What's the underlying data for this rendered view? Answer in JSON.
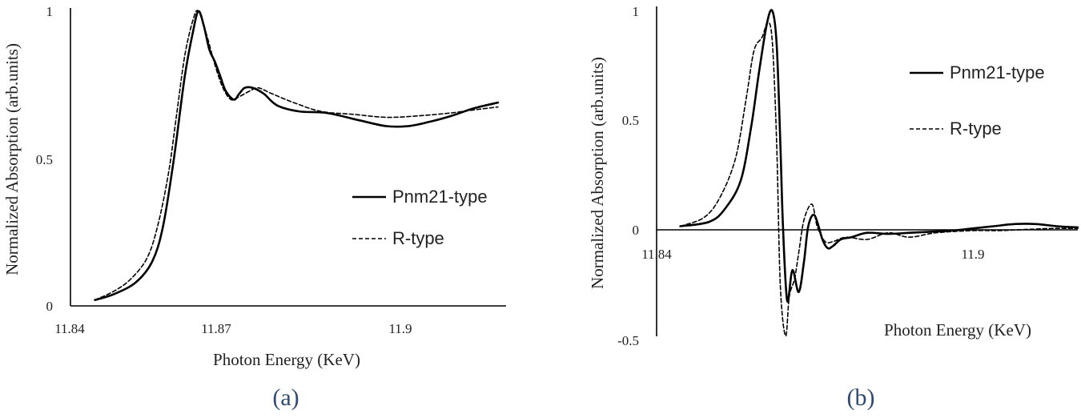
{
  "chart_data": [
    {
      "type": "line",
      "panel_label": "(a)",
      "xlabel": "Photon Energy (KeV)",
      "ylabel": "Normalized Absorption (arb.units)",
      "xlim": [
        11.84,
        11.92
      ],
      "ylim": [
        0,
        1
      ],
      "x_ticks": [
        "11.84",
        "11.87",
        "11.9"
      ],
      "y_ticks": [
        "0",
        "0.5",
        "1"
      ],
      "legend": "right",
      "grid": false,
      "series": [
        {
          "name": "Pnm21-type",
          "style": "solid",
          "x": [
            11.8445,
            11.848,
            11.852,
            11.855,
            11.857,
            11.859,
            11.861,
            11.8625,
            11.8635,
            11.8645,
            11.8655,
            11.8665,
            11.8675,
            11.8685,
            11.87,
            11.871,
            11.872,
            11.8735,
            11.8755,
            11.878,
            11.882,
            11.887,
            11.893,
            11.898,
            11.902,
            11.906,
            11.91,
            11.914,
            11.9185
          ],
          "y": [
            0.02,
            0.04,
            0.08,
            0.15,
            0.27,
            0.5,
            0.78,
            0.93,
            1.0,
            0.95,
            0.87,
            0.83,
            0.78,
            0.73,
            0.7,
            0.72,
            0.74,
            0.74,
            0.72,
            0.68,
            0.66,
            0.655,
            0.63,
            0.61,
            0.61,
            0.625,
            0.645,
            0.67,
            0.69
          ]
        },
        {
          "name": "R-type",
          "style": "dashed",
          "x": [
            11.8445,
            11.848,
            11.851,
            11.854,
            11.856,
            11.858,
            11.8595,
            11.861,
            11.8625,
            11.8635,
            11.865,
            11.8665,
            11.868,
            11.8695,
            11.871,
            11.873,
            11.8745,
            11.877,
            11.881,
            11.886,
            11.892,
            11.898,
            11.904,
            11.91,
            11.914,
            11.9185
          ],
          "y": [
            0.02,
            0.05,
            0.09,
            0.16,
            0.27,
            0.45,
            0.65,
            0.85,
            0.97,
            1.0,
            0.92,
            0.82,
            0.74,
            0.7,
            0.71,
            0.73,
            0.74,
            0.72,
            0.69,
            0.66,
            0.65,
            0.64,
            0.645,
            0.655,
            0.665,
            0.675
          ]
        }
      ]
    },
    {
      "type": "line",
      "panel_label": "(b)",
      "xlabel": "Photon Energy (KeV)",
      "ylabel": "Normalized Absorption (arb.units)",
      "xlim": [
        11.84,
        11.92
      ],
      "ylim": [
        -0.5,
        1
      ],
      "x_ticks": [
        "11.84",
        "11.9"
      ],
      "y_ticks": [
        "-0.5",
        "0",
        "0.5",
        "1"
      ],
      "legend": "top-right",
      "grid": false,
      "series": [
        {
          "name": "Pnm21-type",
          "style": "solid",
          "x": [
            11.8445,
            11.85,
            11.853,
            11.856,
            11.858,
            11.8595,
            11.861,
            11.862,
            11.8628,
            11.8635,
            11.864,
            11.8648,
            11.8658,
            11.867,
            11.868,
            11.8688,
            11.87,
            11.8715,
            11.8725,
            11.8735,
            11.875,
            11.877,
            11.88,
            11.884,
            11.888,
            11.892,
            11.896,
            11.9,
            11.904,
            11.908,
            11.912,
            11.916,
            11.92
          ],
          "y": [
            0.02,
            0.04,
            0.1,
            0.23,
            0.48,
            0.73,
            0.95,
            1.0,
            0.85,
            0.4,
            0.02,
            -0.32,
            -0.18,
            -0.28,
            -0.14,
            0.02,
            0.07,
            -0.04,
            -0.08,
            -0.07,
            -0.04,
            -0.03,
            -0.01,
            -0.015,
            -0.01,
            -0.005,
            0.0,
            0.01,
            0.02,
            0.03,
            0.03,
            0.02,
            0.015
          ]
        },
        {
          "name": "R-type",
          "style": "dashed",
          "x": [
            11.8445,
            11.849,
            11.852,
            11.855,
            11.857,
            11.8585,
            11.86,
            11.8612,
            11.862,
            11.8628,
            11.8635,
            11.8645,
            11.8652,
            11.8662,
            11.867,
            11.868,
            11.8695,
            11.8705,
            11.872,
            11.8735,
            11.876,
            11.88,
            11.884,
            11.888,
            11.893,
            11.9,
            11.905,
            11.91,
            11.915,
            11.92
          ],
          "y": [
            0.02,
            0.06,
            0.15,
            0.33,
            0.6,
            0.82,
            0.88,
            0.95,
            0.85,
            0.4,
            -0.25,
            -0.48,
            -0.3,
            -0.22,
            -0.1,
            0.05,
            0.12,
            0.02,
            -0.05,
            -0.05,
            -0.03,
            -0.04,
            -0.01,
            -0.03,
            -0.01,
            0.0,
            0.0,
            0.005,
            0.01,
            0.01
          ]
        }
      ]
    }
  ]
}
